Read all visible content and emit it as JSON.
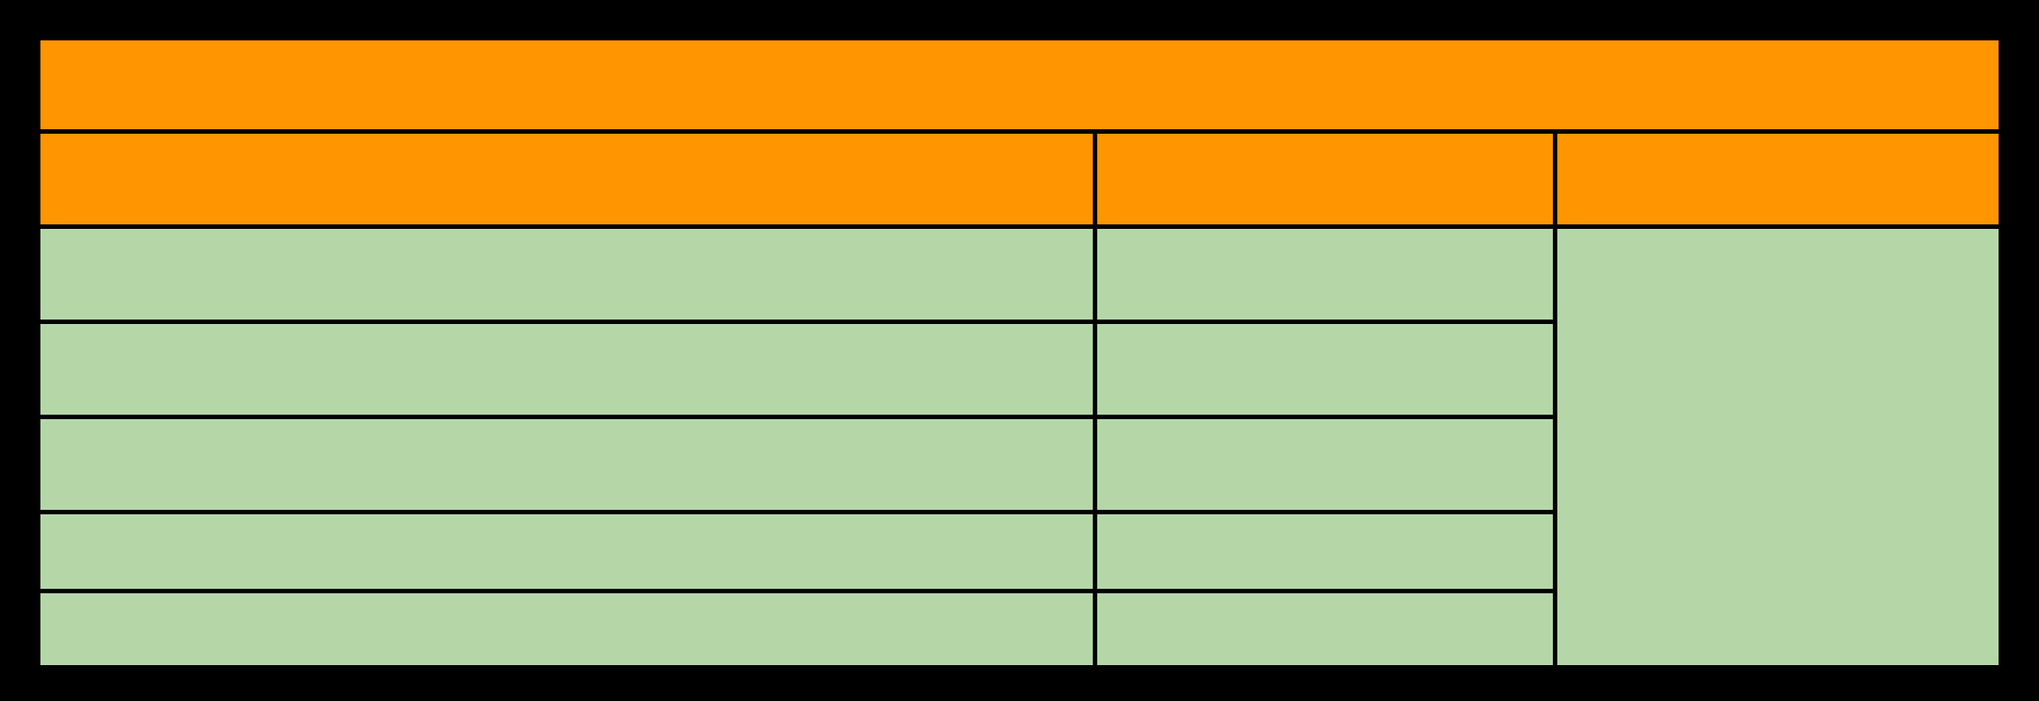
{
  "colors": {
    "header_fill": "#ff9500",
    "body_fill": "#b5d7a8",
    "border": "#000000"
  },
  "table": {
    "title": "",
    "headers": [
      "",
      "",
      ""
    ],
    "rows": [
      [
        "",
        "",
        ""
      ],
      [
        "",
        ""
      ],
      [
        "",
        ""
      ],
      [
        "",
        ""
      ],
      [
        "",
        ""
      ]
    ]
  }
}
